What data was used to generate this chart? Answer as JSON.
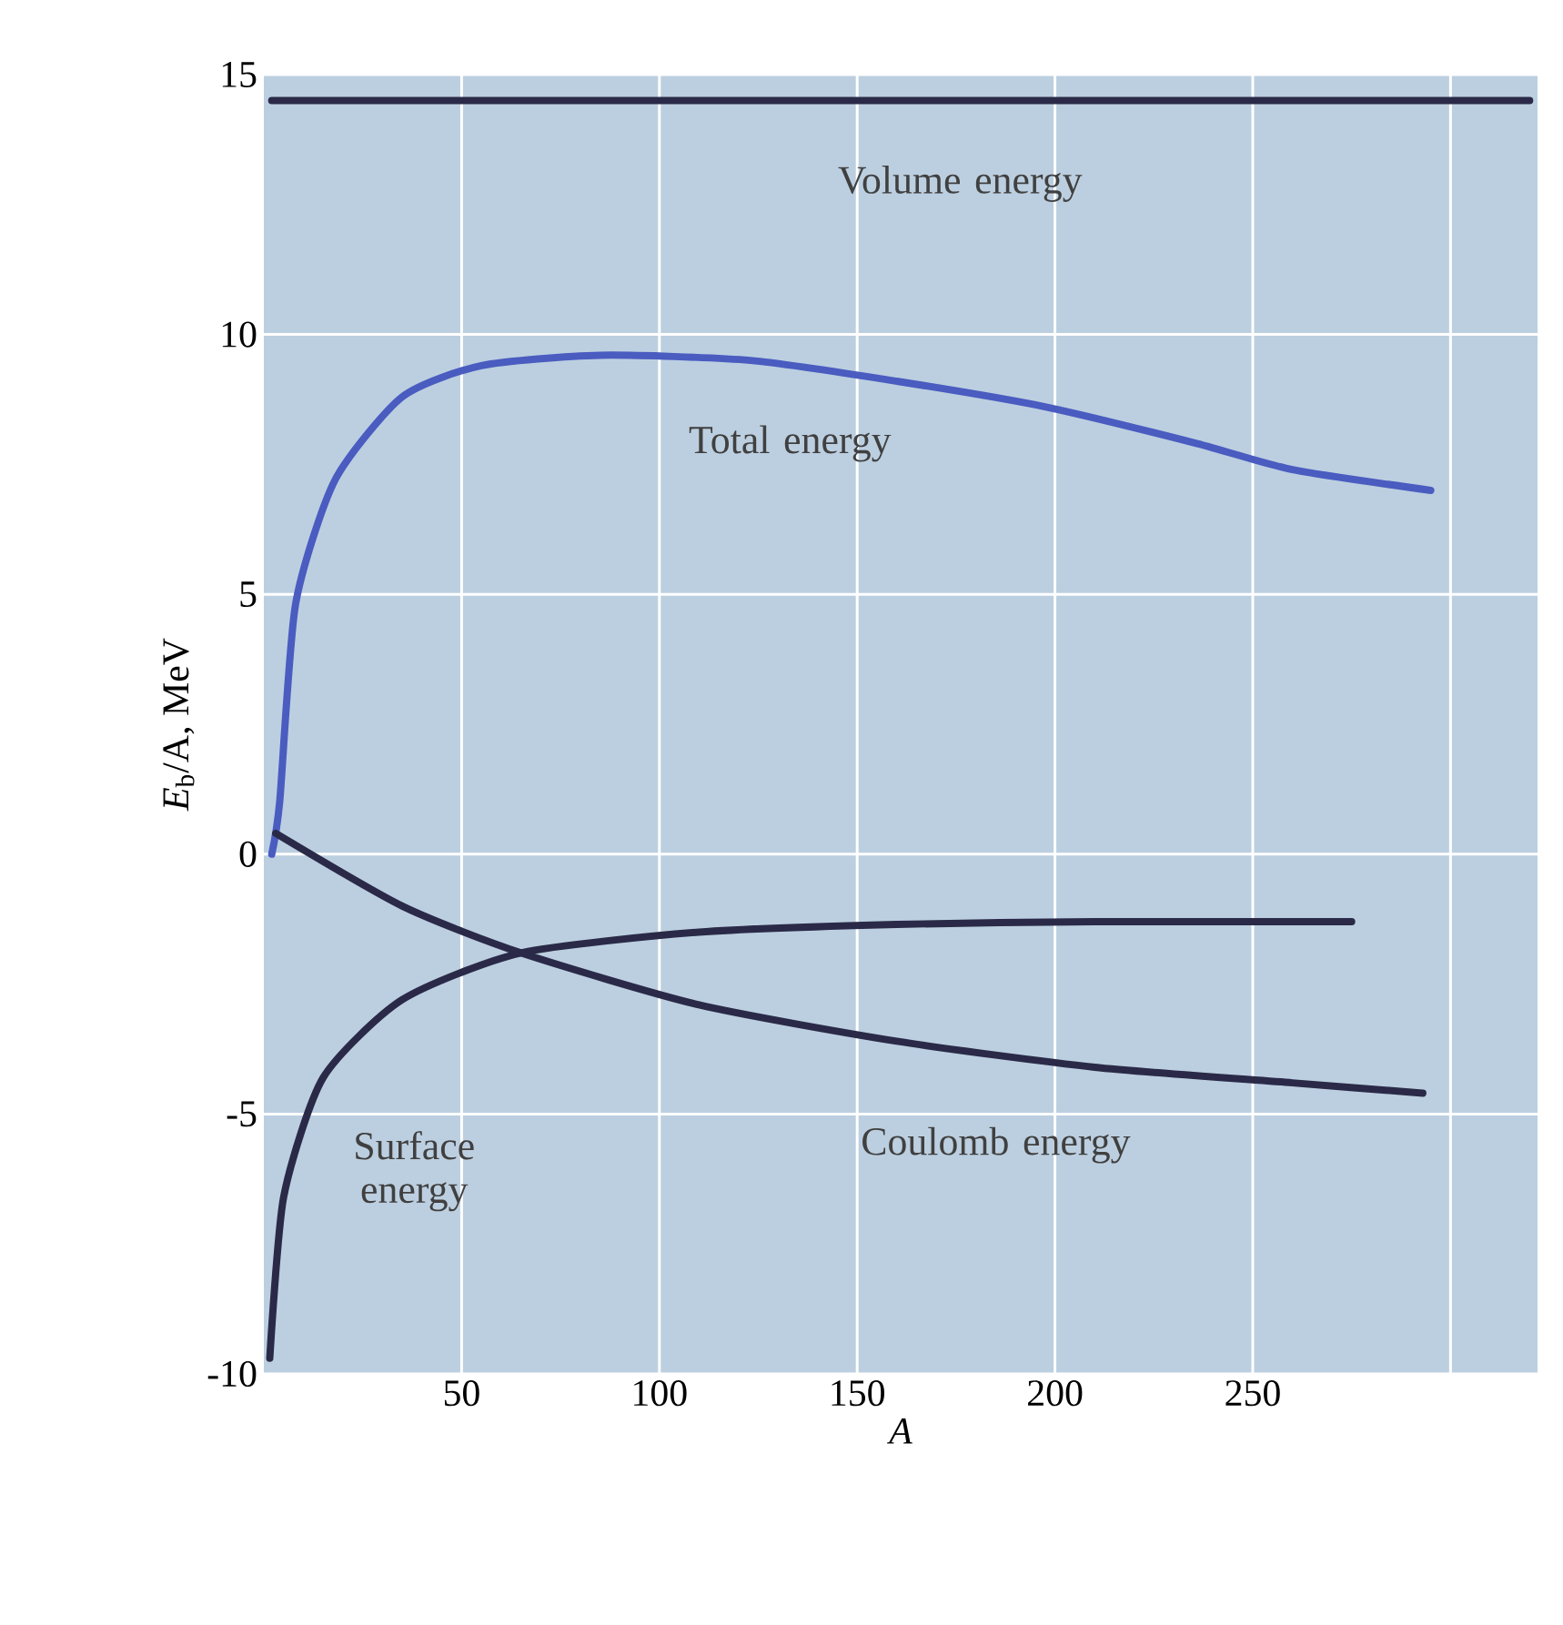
{
  "chart_data": {
    "type": "line",
    "xlabel": "A",
    "ylabel": "*E*$_{b}$/A, MeV",
    "xlim": [
      0,
      322
    ],
    "ylim": [
      -10,
      15
    ],
    "xticks": [
      50,
      100,
      150,
      200,
      250,
      {
        "value": 300,
        "label": null
      }
    ],
    "yticks": [
      -10,
      -5,
      0,
      5,
      10,
      15
    ],
    "grid": true,
    "line_style": "solid",
    "series": [
      {
        "name": "Volume energy",
        "color": "#2a2a48",
        "x": [
          2,
          320
        ],
        "values": [
          14.5,
          14.5
        ]
      },
      {
        "name": "Total energy",
        "color": "#4a5cc0",
        "x": [
          2,
          4,
          8,
          18,
          35,
          55,
          85,
          123,
          160,
          198,
          236,
          260,
          295
        ],
        "values": [
          0,
          1.0,
          4.8,
          7.2,
          8.8,
          9.4,
          9.6,
          9.5,
          9.1,
          8.6,
          7.9,
          7.4,
          7.0
        ]
      },
      {
        "name": "Surface energy",
        "color": "#2a2a48",
        "x": [
          1.5,
          5,
          15,
          35,
          65,
          110,
          160,
          210,
          275
        ],
        "values": [
          -9.7,
          -6.6,
          -4.3,
          -2.8,
          -1.9,
          -1.5,
          -1.35,
          -1.3,
          -1.3
        ]
      },
      {
        "name": "Coulomb energy",
        "color": "#2a2a48",
        "x": [
          3,
          35,
          65,
          110,
          160,
          210,
          260,
          293
        ],
        "values": [
          0.4,
          -1.0,
          -1.9,
          -2.9,
          -3.6,
          -4.1,
          -4.4,
          -4.6
        ]
      }
    ]
  }
}
